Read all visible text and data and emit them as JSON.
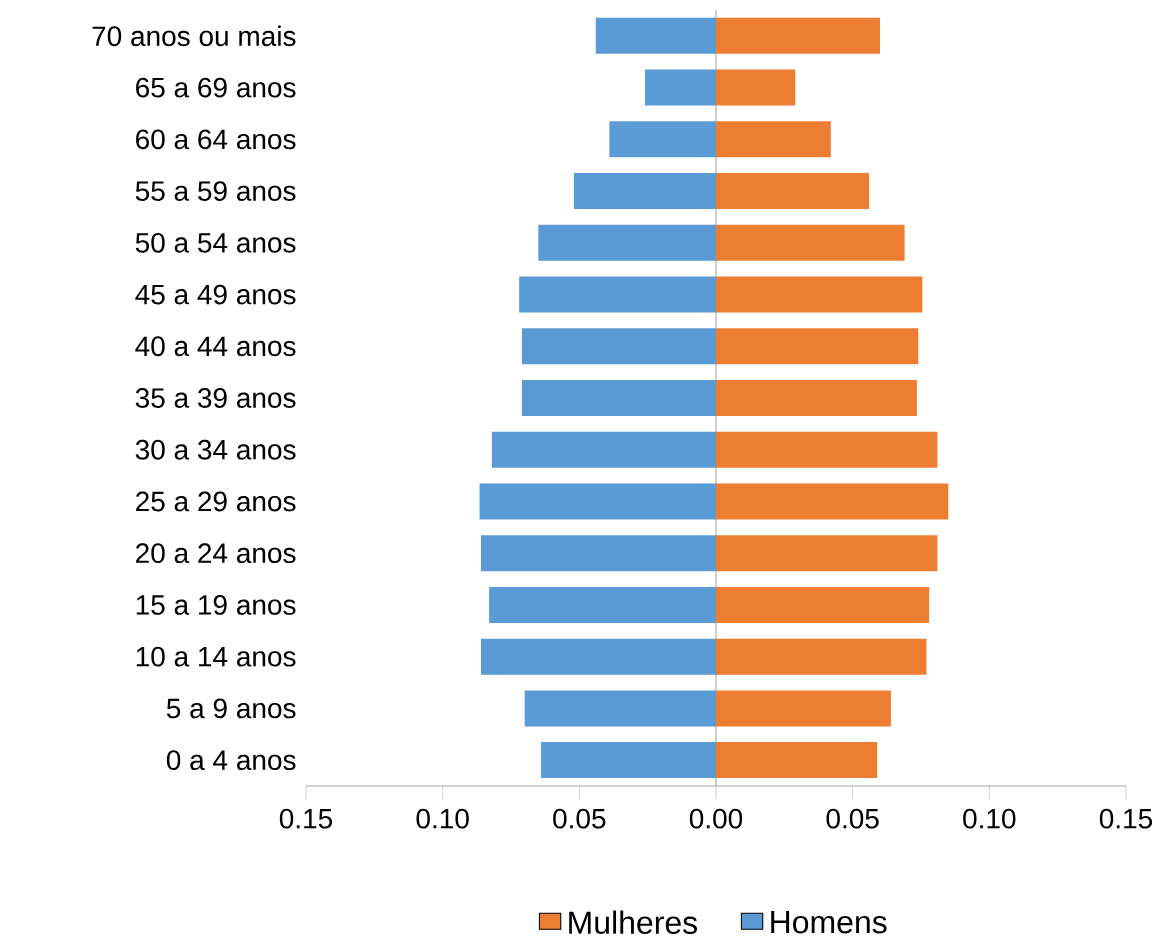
{
  "chart_data": {
    "type": "bar",
    "orientation": "horizontal",
    "categories": [
      "70 anos ou mais",
      "65 a 69 anos",
      "60 a 64 anos",
      "55 a 59 anos",
      "50 a 54 anos",
      "45 a 49 anos",
      "40 a 44 anos",
      "35 a 39 anos",
      "30 a 34 anos",
      "25 a 29 anos",
      "20 a 24 anos",
      "15 a 19 anos",
      "10 a 14 anos",
      "5 a 9 anos",
      "0 a 4 anos"
    ],
    "series": [
      {
        "name": "Mulheres",
        "color": "#ed7d31",
        "values": [
          0.06,
          0.029,
          0.042,
          0.056,
          0.069,
          0.0755,
          0.074,
          0.0735,
          0.081,
          0.085,
          0.081,
          0.078,
          0.077,
          0.064,
          0.059
        ]
      },
      {
        "name": "Homens",
        "color": "#5b9bd5",
        "values": [
          -0.044,
          -0.026,
          -0.039,
          -0.052,
          -0.065,
          -0.072,
          -0.071,
          -0.071,
          -0.082,
          -0.0865,
          -0.086,
          -0.083,
          -0.086,
          -0.07,
          -0.064
        ]
      }
    ],
    "xlim": [
      -0.15,
      0.15
    ],
    "xticks": [
      {
        "value": -0.15,
        "label": "0.15"
      },
      {
        "value": -0.1,
        "label": "0.10"
      },
      {
        "value": -0.05,
        "label": "0.05"
      },
      {
        "value": 0,
        "label": "0.00"
      },
      {
        "value": 0.05,
        "label": "0.05"
      },
      {
        "value": 0.1,
        "label": "0.10"
      },
      {
        "value": 0.15,
        "label": "0.15"
      }
    ],
    "stacked": true,
    "legend": "bottom"
  }
}
